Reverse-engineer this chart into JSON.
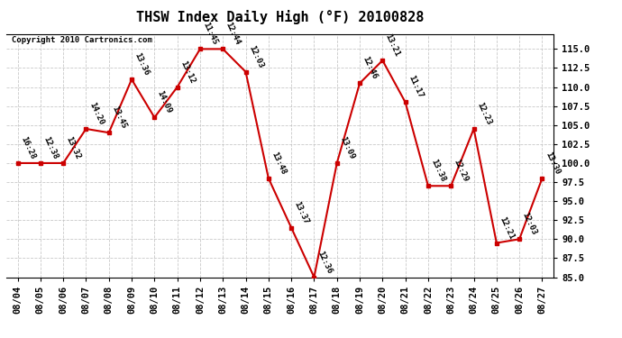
{
  "title": "THSW Index Daily High (°F) 20100828",
  "copyright": "Copyright 2010 Cartronics.com",
  "dates": [
    "08/04",
    "08/05",
    "08/06",
    "08/07",
    "08/08",
    "08/09",
    "08/10",
    "08/11",
    "08/12",
    "08/13",
    "08/14",
    "08/15",
    "08/16",
    "08/17",
    "08/18",
    "08/19",
    "08/20",
    "08/21",
    "08/22",
    "08/23",
    "08/24",
    "08/25",
    "08/26",
    "08/27"
  ],
  "values": [
    100.0,
    100.0,
    100.0,
    104.5,
    104.0,
    111.0,
    106.0,
    110.0,
    115.0,
    115.0,
    112.0,
    98.0,
    91.5,
    85.0,
    100.0,
    110.5,
    113.5,
    108.0,
    97.0,
    97.0,
    104.5,
    89.5,
    90.0,
    98.0
  ],
  "labels": [
    "16:28",
    "12:38",
    "13:32",
    "14:20",
    "13:45",
    "13:36",
    "14:09",
    "13:12",
    "11:45",
    "12:44",
    "12:03",
    "13:48",
    "13:37",
    "12:36",
    "13:09",
    "12:46",
    "13:21",
    "11:17",
    "13:38",
    "12:29",
    "12:23",
    "12:21",
    "12:03",
    "13:30"
  ],
  "line_color": "#cc0000",
  "marker_color": "#cc0000",
  "bg_color": "#ffffff",
  "grid_color": "#bbbbbb",
  "ylim": [
    85.0,
    117.0
  ],
  "yticks": [
    85.0,
    87.5,
    90.0,
    92.5,
    95.0,
    97.5,
    100.0,
    102.5,
    105.0,
    107.5,
    110.0,
    112.5,
    115.0
  ],
  "title_fontsize": 11,
  "label_fontsize": 6.5,
  "tick_fontsize": 7.5,
  "copyright_fontsize": 6.5
}
